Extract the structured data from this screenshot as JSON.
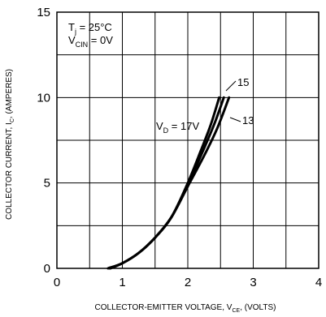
{
  "chart_data": {
    "type": "line",
    "xlim": [
      0,
      4
    ],
    "ylim": [
      0,
      15
    ],
    "x_major_ticks": [
      "0",
      "1",
      "2",
      "3",
      "4"
    ],
    "y_major_ticks": [
      "0",
      "5",
      "10",
      "15"
    ],
    "grid": true,
    "xlabel": {
      "main": "COLLECTOR-EMITTER VOLTAGE, V",
      "sub": "CE",
      "tail": ", (VOLTS)"
    },
    "ylabel": {
      "main": "COLLECTOR CURRENT, I",
      "sub": "C",
      "tail": ", (AMPERES)"
    },
    "conditions": [
      {
        "main": "T",
        "sub": "j",
        "tail": " = 25°C"
      },
      {
        "main": "V",
        "sub": "CIN",
        "tail": " = 0V"
      }
    ],
    "series": [
      {
        "name": "V_D = 17V",
        "label_main": "V",
        "label_sub": "D",
        "label_tail": " = 17V",
        "x": [
          0.78,
          1.0,
          1.25,
          1.5,
          1.75,
          2.0,
          2.2,
          2.35,
          2.48
        ],
        "y": [
          0.0,
          0.3,
          0.9,
          1.8,
          3.0,
          5.0,
          6.9,
          8.4,
          10.0
        ]
      },
      {
        "name": "15",
        "label_main": "15",
        "label_sub": "",
        "label_tail": "",
        "x": [
          0.8,
          1.0,
          1.25,
          1.5,
          1.75,
          2.0,
          2.2,
          2.4,
          2.55
        ],
        "y": [
          0.0,
          0.3,
          0.9,
          1.8,
          3.0,
          4.9,
          6.6,
          8.4,
          10.0
        ]
      },
      {
        "name": "13",
        "label_main": "13",
        "label_sub": "",
        "label_tail": "",
        "x": [
          0.82,
          1.0,
          1.25,
          1.5,
          1.75,
          2.0,
          2.25,
          2.45,
          2.63
        ],
        "y": [
          0.0,
          0.3,
          0.9,
          1.8,
          3.0,
          4.8,
          6.6,
          8.2,
          10.0
        ]
      }
    ]
  }
}
